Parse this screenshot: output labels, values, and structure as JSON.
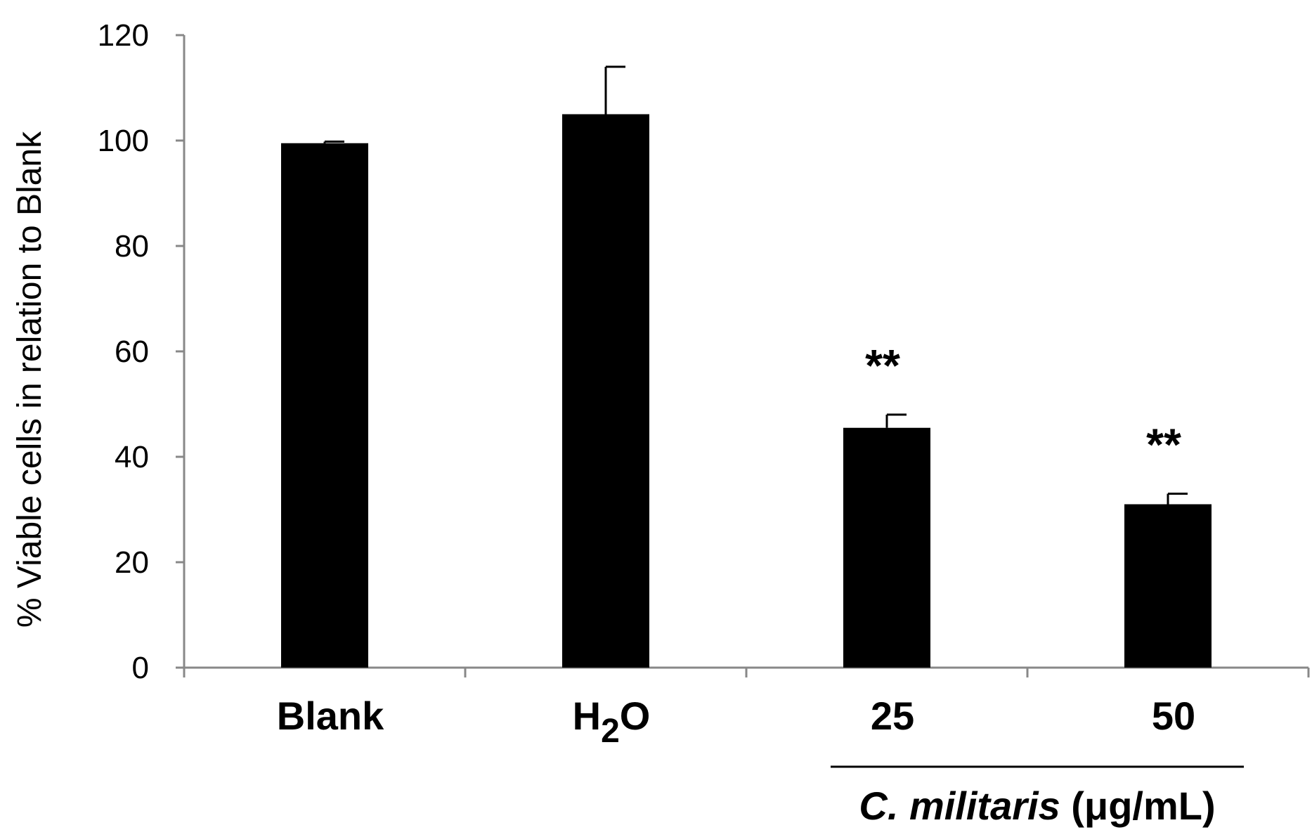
{
  "chart_data": {
    "type": "bar",
    "ylabel": "% Viable cells in relation to Blank",
    "ylim": [
      0,
      120
    ],
    "yticks": [
      0,
      20,
      40,
      60,
      80,
      100,
      120
    ],
    "categories": [
      {
        "base": "Blank",
        "sub": "",
        "tail": ""
      },
      {
        "base": "H",
        "sub": "2",
        "tail": "O"
      },
      {
        "base": "25",
        "sub": "",
        "tail": ""
      },
      {
        "base": "50",
        "sub": "",
        "tail": ""
      }
    ],
    "values": [
      99.5,
      105,
      45.5,
      31
    ],
    "errors": [
      0.3,
      9,
      2.5,
      2
    ],
    "annotations": [
      "",
      "",
      "**",
      "**"
    ],
    "group": {
      "species": "C. militaris",
      "unit": " (μg/mL)",
      "covers": [
        2,
        3
      ]
    },
    "bar_color": "#000000",
    "grid": false,
    "legend": "none"
  }
}
